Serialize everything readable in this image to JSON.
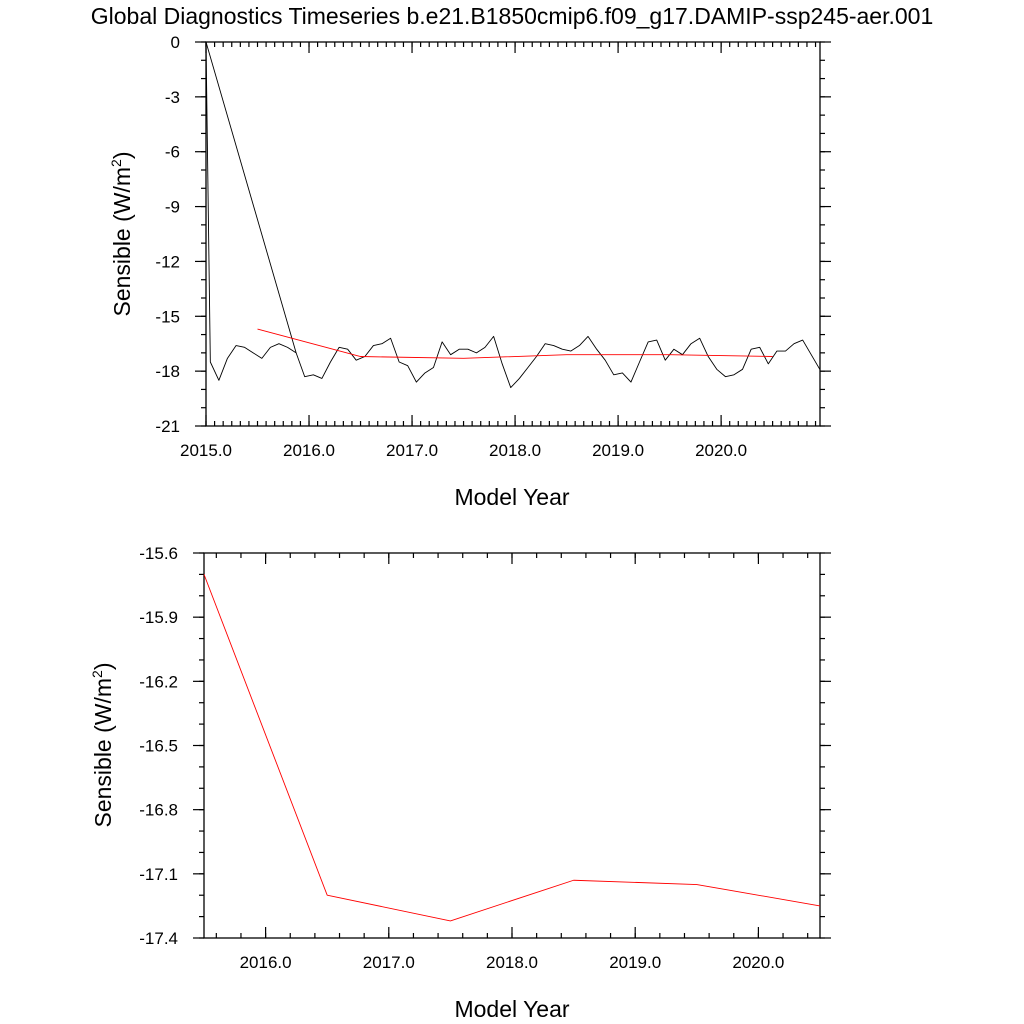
{
  "chart_data": [
    {
      "type": "line",
      "title": "Global Diagnostics Timeseries b.e21.B1850cmip6.f09_g17.DAMIP-ssp245-aer.001",
      "xlabel": "Model Year",
      "ylabel": "Sensible (W/m",
      "ylabel_sup": "2",
      "ylabel_close": ")",
      "xlim": [
        2015.0,
        2020.96
      ],
      "ylim": [
        -21,
        0
      ],
      "xticks": [
        2015.0,
        2016.0,
        2017.0,
        2018.0,
        2019.0,
        2020.0
      ],
      "xtick_labels": [
        "2015.0",
        "2016.0",
        "2017.0",
        "2018.0",
        "2019.0",
        "2020.0"
      ],
      "yticks": [
        -21,
        -18,
        -15,
        -12,
        -9,
        -6,
        -3,
        0
      ],
      "ytick_labels": [
        "-21",
        "-18",
        "-15",
        "-12",
        "-9",
        "-6",
        "-3",
        "0"
      ],
      "series": [
        {
          "color": "#000000",
          "x": [
            2015.0,
            2015.875,
            2015.792,
            2015.708,
            2015.625,
            2015.542,
            2015.458,
            2015.375,
            2015.292,
            2015.208,
            2015.125,
            2015.042,
            2015.0,
            2015.875,
            2015.958,
            2016.042,
            2016.125,
            2016.208,
            2016.292,
            2016.375,
            2016.458,
            2016.542,
            2016.625,
            2016.708,
            2016.792,
            2016.875,
            2016.958,
            2017.042,
            2017.125,
            2017.208,
            2017.292,
            2017.375,
            2017.458,
            2017.542,
            2017.625,
            2017.708,
            2017.792,
            2017.875,
            2017.958,
            2018.042,
            2018.125,
            2018.208,
            2018.292,
            2018.375,
            2018.458,
            2018.542,
            2018.625,
            2018.708,
            2018.792,
            2018.875,
            2018.958,
            2019.042,
            2019.125,
            2019.208,
            2019.292,
            2019.375,
            2019.458,
            2019.542,
            2019.625,
            2019.708,
            2019.792,
            2019.875,
            2019.958,
            2020.042,
            2020.125,
            2020.208,
            2020.292,
            2020.375,
            2020.458,
            2020.542,
            2020.625,
            2020.708,
            2020.792,
            2020.875,
            2020.958
          ],
          "y": [
            0.0,
            -17.0,
            -16.7,
            -16.5,
            -16.7,
            -17.3,
            -17.0,
            -16.7,
            -16.6,
            -17.3,
            -18.5,
            -17.5,
            0.0,
            -17.0,
            -18.3,
            -18.2,
            -18.4,
            -17.5,
            -16.7,
            -16.8,
            -17.4,
            -17.2,
            -16.6,
            -16.5,
            -16.2,
            -17.5,
            -17.7,
            -18.6,
            -18.1,
            -17.8,
            -16.4,
            -17.1,
            -16.8,
            -16.8,
            -17.0,
            -16.7,
            -16.1,
            -17.6,
            -18.9,
            -18.4,
            -17.8,
            -17.2,
            -16.5,
            -16.6,
            -16.8,
            -16.9,
            -16.6,
            -16.1,
            -16.8,
            -17.4,
            -18.2,
            -18.1,
            -18.6,
            -17.5,
            -16.4,
            -16.3,
            -17.4,
            -16.8,
            -17.1,
            -16.5,
            -16.2,
            -17.2,
            -17.9,
            -18.3,
            -18.2,
            -17.9,
            -16.8,
            -16.7,
            -17.6,
            -16.9,
            -16.9,
            -16.5,
            -16.3,
            -17.1,
            -17.9
          ]
        },
        {
          "color": "#ff0000",
          "x": [
            2015.5,
            2016.5,
            2017.5,
            2018.5,
            2019.5,
            2020.5
          ],
          "y": [
            -15.7,
            -17.2,
            -17.3,
            -17.1,
            -17.1,
            -17.2
          ]
        }
      ]
    },
    {
      "type": "line",
      "title": "",
      "xlabel": "Model Year",
      "ylabel": "Sensible (W/m",
      "ylabel_sup": "2",
      "ylabel_close": ")",
      "xlim": [
        2015.5,
        2020.5
      ],
      "ylim": [
        -17.4,
        -15.6
      ],
      "xticks": [
        2016.0,
        2017.0,
        2018.0,
        2019.0,
        2020.0
      ],
      "xtick_labels": [
        "2016.0",
        "2017.0",
        "2018.0",
        "2019.0",
        "2020.0"
      ],
      "yticks": [
        -17.4,
        -17.1,
        -16.8,
        -16.5,
        -16.2,
        -15.9,
        -15.6
      ],
      "ytick_labels": [
        "-17.4",
        "-17.1",
        "-16.8",
        "-16.5",
        "-16.2",
        "-15.9",
        "-15.6"
      ],
      "series": [
        {
          "color": "#ff0000",
          "x": [
            2015.5,
            2016.5,
            2017.5,
            2018.5,
            2019.5,
            2020.5
          ],
          "y": [
            -15.7,
            -17.2,
            -17.32,
            -17.13,
            -17.15,
            -17.25
          ]
        }
      ]
    }
  ]
}
